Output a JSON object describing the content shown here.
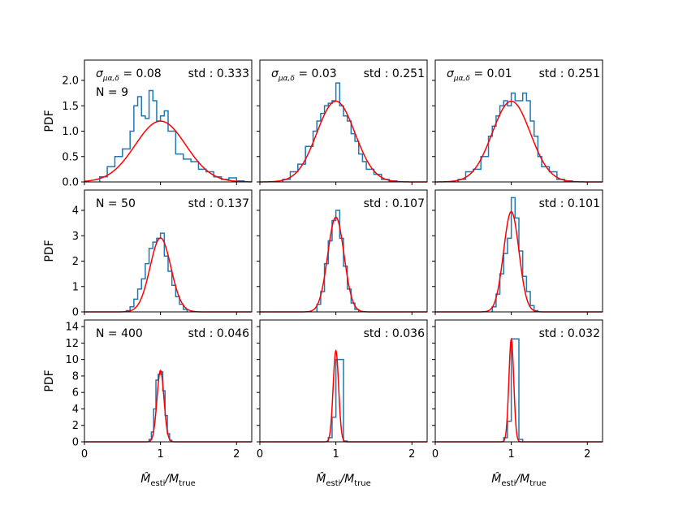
{
  "figure": {
    "x_label_main": "M̂",
    "x_label_sub_main": "esti",
    "x_label_slash": "/M",
    "x_label_sub_den": "true",
    "y_label": "PDF"
  },
  "colors": {
    "histogram": "#1f77b4",
    "fit": "#ff0000",
    "axes": "#000000"
  },
  "chart_data": [
    {
      "type": "histogram",
      "row": 0,
      "col": 0,
      "xlim": [
        0,
        2.2
      ],
      "ylim": [
        0,
        2.4
      ],
      "yticks": [
        0.0,
        0.5,
        1.0,
        1.5,
        2.0
      ],
      "ytick_labels": [
        "0.0",
        "0.5",
        "1.0",
        "1.5",
        "2.0"
      ],
      "xticks": [
        0,
        1,
        2
      ],
      "xtick_labels": [],
      "fit_mean": 1.0,
      "fit_std": 0.333,
      "fit_scale": 1.0,
      "annotations": {
        "sigma_sym": "σ",
        "sigma_sub": "μα,δ",
        "sigma_eq": " = 0.08",
        "n": "N = 9",
        "std": "std : 0.333"
      },
      "hist_x": [
        0.2,
        0.3,
        0.4,
        0.5,
        0.6,
        0.65,
        0.7,
        0.75,
        0.8,
        0.85,
        0.9,
        0.95,
        1.0,
        1.05,
        1.1,
        1.15,
        1.2,
        1.3,
        1.4,
        1.5,
        1.6,
        1.7,
        1.8,
        1.9,
        2.0
      ],
      "hist_y": [
        0.1,
        0.3,
        0.5,
        0.65,
        1.0,
        1.5,
        1.68,
        1.3,
        1.25,
        1.8,
        1.6,
        1.2,
        1.3,
        1.4,
        1.0,
        1.0,
        0.55,
        0.45,
        0.4,
        0.25,
        0.2,
        0.1,
        0.05,
        0.08,
        0.02
      ]
    },
    {
      "type": "histogram",
      "row": 0,
      "col": 1,
      "xlim": [
        0,
        2.2
      ],
      "ylim": [
        0,
        2.4
      ],
      "yticks": [
        0.0,
        0.5,
        1.0,
        1.5,
        2.0
      ],
      "ytick_labels": [],
      "xticks": [
        0,
        1,
        2
      ],
      "xtick_labels": [],
      "fit_mean": 1.0,
      "fit_std": 0.251,
      "fit_scale": 1.0,
      "annotations": {
        "sigma_sym": "σ",
        "sigma_sub": "μα,δ",
        "sigma_eq": " = 0.03",
        "n": "",
        "std": "std : 0.251"
      },
      "hist_x": [
        0.3,
        0.4,
        0.5,
        0.6,
        0.7,
        0.75,
        0.8,
        0.85,
        0.9,
        0.95,
        1.0,
        1.05,
        1.1,
        1.15,
        1.2,
        1.25,
        1.3,
        1.35,
        1.4,
        1.5,
        1.6,
        1.7
      ],
      "hist_y": [
        0.05,
        0.2,
        0.35,
        0.7,
        1.0,
        1.2,
        1.35,
        1.5,
        1.55,
        1.6,
        1.95,
        1.5,
        1.3,
        1.2,
        0.95,
        0.8,
        0.55,
        0.4,
        0.25,
        0.15,
        0.05,
        0.02
      ]
    },
    {
      "type": "histogram",
      "row": 0,
      "col": 2,
      "xlim": [
        0,
        2.2
      ],
      "ylim": [
        0,
        2.4
      ],
      "yticks": [
        0.0,
        0.5,
        1.0,
        1.5,
        2.0
      ],
      "ytick_labels": [],
      "xticks": [
        0,
        1,
        2
      ],
      "xtick_labels": [],
      "fit_mean": 1.0,
      "fit_std": 0.251,
      "fit_scale": 1.0,
      "annotations": {
        "sigma_sym": "σ",
        "sigma_sub": "μα,δ",
        "sigma_eq": " = 0.01",
        "n": "",
        "std": "std : 0.251"
      },
      "hist_x": [
        0.3,
        0.4,
        0.5,
        0.6,
        0.7,
        0.75,
        0.8,
        0.85,
        0.9,
        0.95,
        1.0,
        1.05,
        1.1,
        1.15,
        1.2,
        1.25,
        1.3,
        1.35,
        1.4,
        1.5,
        1.6,
        1.7
      ],
      "hist_y": [
        0.05,
        0.2,
        0.25,
        0.5,
        0.9,
        1.1,
        1.3,
        1.5,
        1.6,
        1.5,
        1.75,
        1.6,
        1.6,
        1.75,
        1.6,
        1.2,
        0.9,
        0.5,
        0.3,
        0.2,
        0.05,
        0.02
      ]
    },
    {
      "type": "histogram",
      "row": 1,
      "col": 0,
      "xlim": [
        0,
        2.2
      ],
      "ylim": [
        0,
        4.8
      ],
      "yticks": [
        0,
        1,
        2,
        3,
        4
      ],
      "ytick_labels": [
        "0",
        "1",
        "2",
        "3",
        "4"
      ],
      "xticks": [
        0,
        1,
        2
      ],
      "xtick_labels": [],
      "fit_mean": 1.0,
      "fit_std": 0.137,
      "fit_scale": 1.0,
      "annotations": {
        "sigma_sym": "",
        "sigma_sub": "",
        "sigma_eq": "",
        "n": "N = 50",
        "std": "std : 0.137"
      },
      "hist_x": [
        0.55,
        0.6,
        0.65,
        0.7,
        0.75,
        0.8,
        0.85,
        0.9,
        0.95,
        1.0,
        1.05,
        1.1,
        1.15,
        1.2,
        1.25,
        1.3
      ],
      "hist_y": [
        0.05,
        0.2,
        0.5,
        0.9,
        1.3,
        1.9,
        2.5,
        2.75,
        2.9,
        3.1,
        2.2,
        1.6,
        1.05,
        0.6,
        0.3,
        0.1
      ]
    },
    {
      "type": "histogram",
      "row": 1,
      "col": 1,
      "xlim": [
        0,
        2.2
      ],
      "ylim": [
        0,
        4.8
      ],
      "yticks": [
        0,
        1,
        2,
        3,
        4
      ],
      "ytick_labels": [],
      "xticks": [
        0,
        1,
        2
      ],
      "xtick_labels": [],
      "fit_mean": 1.0,
      "fit_std": 0.107,
      "fit_scale": 1.0,
      "annotations": {
        "sigma_sym": "",
        "sigma_sub": "",
        "sigma_eq": "",
        "n": "",
        "std": "std : 0.107"
      },
      "hist_x": [
        0.75,
        0.8,
        0.85,
        0.9,
        0.95,
        1.0,
        1.05,
        1.1,
        1.15,
        1.2,
        1.25
      ],
      "hist_y": [
        0.3,
        0.8,
        1.9,
        2.8,
        3.6,
        4.0,
        2.9,
        1.8,
        0.9,
        0.35,
        0.1
      ]
    },
    {
      "type": "histogram",
      "row": 1,
      "col": 2,
      "xlim": [
        0,
        2.2
      ],
      "ylim": [
        0,
        4.8
      ],
      "yticks": [
        0,
        1,
        2,
        3,
        4
      ],
      "ytick_labels": [],
      "xticks": [
        0,
        1,
        2
      ],
      "xtick_labels": [],
      "fit_mean": 1.0,
      "fit_std": 0.101,
      "fit_scale": 1.0,
      "annotations": {
        "sigma_sym": "",
        "sigma_sub": "",
        "sigma_eq": "",
        "n": "",
        "std": "std : 0.101"
      },
      "hist_x": [
        0.75,
        0.8,
        0.85,
        0.9,
        0.95,
        1.0,
        1.05,
        1.1,
        1.15,
        1.2,
        1.25,
        1.3
      ],
      "hist_y": [
        0.2,
        0.7,
        1.5,
        2.3,
        2.9,
        4.5,
        3.7,
        2.4,
        1.4,
        0.8,
        0.25,
        0.05
      ]
    },
    {
      "type": "histogram",
      "row": 2,
      "col": 0,
      "xlim": [
        0,
        2.2
      ],
      "ylim": [
        0,
        14.8
      ],
      "yticks": [
        0,
        2,
        4,
        6,
        8,
        10,
        12,
        14
      ],
      "ytick_labels": [
        "0",
        "2",
        "4",
        "6",
        "8",
        "10",
        "12",
        "14"
      ],
      "xticks": [
        0,
        1,
        2
      ],
      "xtick_labels": [
        "0",
        "1",
        "2"
      ],
      "fit_mean": 1.0,
      "fit_std": 0.046,
      "fit_scale": 1.0,
      "annotations": {
        "sigma_sym": "",
        "sigma_sub": "",
        "sigma_eq": "",
        "n": "N = 400",
        "std": "std : 0.046"
      },
      "hist_x": [
        0.85,
        0.88,
        0.91,
        0.94,
        0.97,
        1.0,
        1.03,
        1.06,
        1.09,
        1.12
      ],
      "hist_y": [
        0.3,
        1.2,
        4.0,
        7.5,
        8.2,
        8.5,
        6.2,
        3.2,
        1.0,
        0.2
      ]
    },
    {
      "type": "histogram",
      "row": 2,
      "col": 1,
      "xlim": [
        0,
        2.2
      ],
      "ylim": [
        0,
        14.8
      ],
      "yticks": [
        0,
        2,
        4,
        6,
        8,
        10,
        12,
        14
      ],
      "ytick_labels": [],
      "xticks": [
        0,
        1,
        2
      ],
      "xtick_labels": [
        "0",
        "1",
        "2"
      ],
      "fit_mean": 1.0,
      "fit_std": 0.036,
      "fit_scale": 1.0,
      "annotations": {
        "sigma_sym": "",
        "sigma_sub": "",
        "sigma_eq": "",
        "n": "",
        "std": "std : 0.036"
      },
      "hist_x": [
        0.9,
        0.95,
        1.0,
        1.05,
        1.1
      ],
      "hist_y": [
        0.5,
        3.0,
        10.0,
        10.0,
        0.1
      ]
    },
    {
      "type": "histogram",
      "row": 2,
      "col": 2,
      "xlim": [
        0,
        2.2
      ],
      "ylim": [
        0,
        14.8
      ],
      "yticks": [
        0,
        2,
        4,
        6,
        8,
        10,
        12,
        14
      ],
      "ytick_labels": [],
      "xticks": [
        0,
        1,
        2
      ],
      "xtick_labels": [
        "0",
        "1",
        "2"
      ],
      "fit_mean": 1.0,
      "fit_std": 0.032,
      "fit_scale": 1.0,
      "annotations": {
        "sigma_sym": "",
        "sigma_sub": "",
        "sigma_eq": "",
        "n": "",
        "std": "std : 0.032"
      },
      "hist_x": [
        0.9,
        0.95,
        1.0,
        1.05,
        1.1
      ],
      "hist_y": [
        0.5,
        2.5,
        12.5,
        12.5,
        0.3
      ]
    }
  ]
}
